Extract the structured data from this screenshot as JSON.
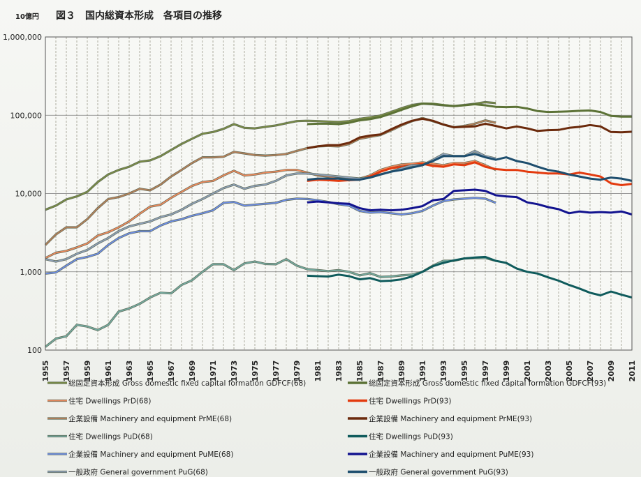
{
  "chart_data": {
    "type": "line",
    "title": "図３　国内総資本形成　各項目の推移",
    "unit_label": "10億円",
    "y_scale": "log",
    "ylim": [
      100,
      1000000
    ],
    "y_ticks": [
      "100",
      "1,000",
      "10,000",
      "100,000",
      "1,000,000"
    ],
    "y_tick_values": [
      100,
      1000,
      10000,
      100000,
      1000000
    ],
    "xlim": [
      1955,
      2011
    ],
    "x_tick_labels": [
      "1955",
      "1957",
      "1959",
      "1961",
      "1963",
      "1965",
      "1967",
      "1969",
      "1971",
      "1973",
      "1975",
      "1977",
      "1979",
      "1981",
      "1983",
      "1985",
      "1987",
      "1989",
      "1991",
      "1993",
      "1995",
      "1997",
      "1999",
      "2001",
      "2003",
      "2005",
      "2007",
      "2009",
      "2011"
    ],
    "grid": "vertical dashed every year",
    "legend_placement": "bottom",
    "series": [
      {
        "name": "総固定資本形成 Gross domestic fixed capital formation GDFCF(68)",
        "color": "#7a8c46",
        "x": [
          1955,
          1956,
          1957,
          1958,
          1959,
          1960,
          1961,
          1962,
          1963,
          1964,
          1965,
          1966,
          1967,
          1968,
          1969,
          1970,
          1971,
          1972,
          1973,
          1974,
          1975,
          1976,
          1977,
          1978,
          1979,
          1980,
          1981,
          1982,
          1983,
          1984,
          1985,
          1986,
          1987,
          1988,
          1989,
          1990,
          1991,
          1992,
          1993,
          1994,
          1995,
          1996,
          1997,
          1998
        ],
        "values": [
          6200,
          7000,
          8400,
          9200,
          10500,
          14000,
          17500,
          20000,
          22000,
          25500,
          26500,
          30000,
          36000,
          43000,
          50000,
          58000,
          61000,
          67000,
          77000,
          69000,
          68000,
          71000,
          74000,
          79000,
          84000,
          85000,
          84000,
          83000,
          82000,
          84000,
          90000,
          94000,
          99000,
          110000,
          123000,
          135000,
          141000,
          138000,
          134000,
          131000,
          135000,
          140000,
          147000,
          143000
        ]
      },
      {
        "name": "総固定資本形成 Gross domestic fixed capital formation GDFCF(93)",
        "color": "#5c7236",
        "x": [
          1980,
          1981,
          1982,
          1983,
          1984,
          1985,
          1986,
          1987,
          1988,
          1989,
          1990,
          1991,
          1992,
          1993,
          1994,
          1995,
          1996,
          1997,
          1998,
          1999,
          2000,
          2001,
          2002,
          2003,
          2004,
          2005,
          2006,
          2007,
          2008,
          2009,
          2010,
          2011
        ],
        "values": [
          77000,
          78000,
          78000,
          77000,
          80000,
          86000,
          89000,
          95000,
          105000,
          117000,
          130000,
          141000,
          140000,
          135000,
          131000,
          134000,
          138000,
          134000,
          128000,
          127000,
          128000,
          122000,
          113000,
          110000,
          111000,
          112000,
          114000,
          115000,
          110000,
          98000,
          96000,
          96000
        ]
      },
      {
        "name": "住宅 Dwellings PrD(68)",
        "color": "#ef8a5c",
        "x": [
          1955,
          1956,
          1957,
          1958,
          1959,
          1960,
          1961,
          1962,
          1963,
          1964,
          1965,
          1966,
          1967,
          1968,
          1969,
          1970,
          1971,
          1972,
          1973,
          1974,
          1975,
          1976,
          1977,
          1978,
          1979,
          1980,
          1981,
          1982,
          1983,
          1984,
          1985,
          1986,
          1987,
          1988,
          1989,
          1990,
          1991,
          1992,
          1993,
          1994,
          1995,
          1996,
          1997,
          1998
        ],
        "values": [
          1500,
          1750,
          1850,
          2050,
          2300,
          2900,
          3200,
          3700,
          4400,
          5500,
          6800,
          7200,
          8800,
          10500,
          12500,
          14000,
          14500,
          17000,
          19500,
          17000,
          17500,
          18500,
          19000,
          20000,
          20000,
          18500,
          17000,
          16500,
          15500,
          15000,
          15500,
          17000,
          20000,
          22000,
          23500,
          24000,
          25000,
          24000,
          23000,
          24500,
          24500,
          26000,
          23000,
          20000
        ]
      },
      {
        "name": "住宅 Dwellings PrD(93)",
        "color": "#e33a0e",
        "x": [
          1980,
          1981,
          1982,
          1983,
          1984,
          1985,
          1986,
          1987,
          1988,
          1989,
          1990,
          1991,
          1992,
          1993,
          1994,
          1995,
          1996,
          1997,
          1998,
          1999,
          2000,
          2001,
          2002,
          2003,
          2004,
          2005,
          2006,
          2007,
          2008,
          2009,
          2010,
          2011
        ],
        "values": [
          14500,
          15000,
          14800,
          14500,
          14800,
          15000,
          16500,
          19000,
          21000,
          22000,
          23000,
          24000,
          22500,
          22000,
          23500,
          23000,
          25000,
          22000,
          20500,
          20000,
          20000,
          19000,
          18500,
          18000,
          18000,
          17500,
          18500,
          17500,
          16500,
          13500,
          12800,
          13300
        ]
      },
      {
        "name": "企業設備 Machinery and equipment PrME(68)",
        "color": "#b6815a",
        "x": [
          1955,
          1956,
          1957,
          1958,
          1959,
          1960,
          1961,
          1962,
          1963,
          1964,
          1965,
          1966,
          1967,
          1968,
          1969,
          1970,
          1971,
          1972,
          1973,
          1974,
          1975,
          1976,
          1977,
          1978,
          1979,
          1980,
          1981,
          1982,
          1983,
          1984,
          1985,
          1986,
          1987,
          1988,
          1989,
          1990,
          1991,
          1992,
          1993,
          1994,
          1995,
          1996,
          1997,
          1998
        ],
        "values": [
          2200,
          3000,
          3700,
          3700,
          4700,
          6500,
          8500,
          9000,
          10000,
          11500,
          11000,
          13000,
          16500,
          20000,
          24500,
          29000,
          29000,
          29500,
          34000,
          32500,
          31000,
          30500,
          31000,
          32000,
          35000,
          38000,
          40000,
          40500,
          40000,
          43000,
          50000,
          53000,
          56000,
          64000,
          74000,
          84000,
          92000,
          84000,
          76000,
          70000,
          73000,
          78000,
          86000,
          80000
        ]
      },
      {
        "name": "企業設備 Machinery and equipment PrME(93)",
        "color": "#6b2a0c",
        "x": [
          1980,
          1981,
          1982,
          1983,
          1984,
          1985,
          1986,
          1987,
          1988,
          1989,
          1990,
          1991,
          1992,
          1993,
          1994,
          1995,
          1996,
          1997,
          1998,
          1999,
          2000,
          2001,
          2002,
          2003,
          2004,
          2005,
          2006,
          2007,
          2008,
          2009,
          2010,
          2011
        ],
        "values": [
          38000,
          40000,
          41500,
          41500,
          44500,
          52000,
          55000,
          57000,
          66000,
          76000,
          85000,
          90000,
          85000,
          76000,
          70000,
          71000,
          72000,
          78000,
          73000,
          68000,
          72000,
          68000,
          63000,
          64500,
          65000,
          69000,
          71000,
          75000,
          72000,
          61000,
          60500,
          61500
        ]
      },
      {
        "name": "住宅 Dwellings PuD(68)",
        "color": "#74aaa0",
        "x": [
          1955,
          1956,
          1957,
          1958,
          1959,
          1960,
          1961,
          1962,
          1963,
          1964,
          1965,
          1966,
          1967,
          1968,
          1969,
          1970,
          1971,
          1972,
          1973,
          1974,
          1975,
          1976,
          1977,
          1978,
          1979,
          1980,
          1981,
          1982,
          1983,
          1984,
          1985,
          1986,
          1987,
          1988,
          1989,
          1990,
          1991,
          1992,
          1993,
          1994,
          1995,
          1996,
          1997,
          1998
        ],
        "values": [
          110,
          140,
          150,
          210,
          200,
          180,
          210,
          310,
          340,
          390,
          470,
          540,
          530,
          680,
          780,
          1000,
          1250,
          1250,
          1050,
          1280,
          1350,
          1260,
          1250,
          1450,
          1200,
          1080,
          1050,
          1020,
          1050,
          1000,
          900,
          960,
          860,
          870,
          900,
          920,
          1000,
          1200,
          1380,
          1380,
          1480,
          1500,
          1500,
          1380
        ]
      },
      {
        "name": "住宅 Dwellings PuD(93)",
        "color": "#0f5b5c",
        "x": [
          1980,
          1981,
          1982,
          1983,
          1984,
          1985,
          1986,
          1987,
          1988,
          1989,
          1990,
          1991,
          1992,
          1993,
          1994,
          1995,
          1996,
          1997,
          1998,
          1999,
          2000,
          2001,
          2002,
          2003,
          2004,
          2005,
          2006,
          2007,
          2008,
          2009,
          2010,
          2011
        ],
        "values": [
          890,
          880,
          870,
          920,
          880,
          800,
          830,
          760,
          770,
          800,
          870,
          1000,
          1180,
          1300,
          1400,
          1480,
          1520,
          1550,
          1380,
          1300,
          1100,
          1000,
          950,
          850,
          770,
          680,
          610,
          540,
          500,
          560,
          510,
          470
        ]
      },
      {
        "name": "企業設備 Machinery and equipment PuME(68)",
        "color": "#6e8ee8",
        "x": [
          1955,
          1956,
          1957,
          1958,
          1959,
          1960,
          1961,
          1962,
          1963,
          1964,
          1965,
          1966,
          1967,
          1968,
          1969,
          1970,
          1971,
          1972,
          1973,
          1974,
          1975,
          1976,
          1977,
          1978,
          1979,
          1980,
          1981,
          1982,
          1983,
          1984,
          1985,
          1986,
          1987,
          1988,
          1989,
          1990,
          1991,
          1992,
          1993,
          1994,
          1995,
          1996,
          1997,
          1998
        ],
        "values": [
          950,
          980,
          1200,
          1450,
          1550,
          1700,
          2200,
          2700,
          3100,
          3300,
          3300,
          3900,
          4400,
          4700,
          5200,
          5600,
          6100,
          7600,
          7800,
          7000,
          7200,
          7400,
          7600,
          8300,
          8600,
          8500,
          8200,
          7800,
          7300,
          7000,
          6000,
          5700,
          5800,
          5600,
          5400,
          5600,
          6000,
          7000,
          8000,
          8400,
          8600,
          8800,
          8600,
          7600
        ]
      },
      {
        "name": "企業設備 Machinery and equipment PuME(93)",
        "color": "#12138f",
        "x": [
          1980,
          1981,
          1982,
          1983,
          1984,
          1985,
          1986,
          1987,
          1988,
          1989,
          1990,
          1991,
          1992,
          1993,
          1994,
          1995,
          1996,
          1997,
          1998,
          1999,
          2000,
          2001,
          2002,
          2003,
          2004,
          2005,
          2006,
          2007,
          2008,
          2009,
          2010,
          2011
        ],
        "values": [
          7700,
          7900,
          7700,
          7500,
          7400,
          6500,
          6100,
          6200,
          6100,
          6200,
          6500,
          6900,
          8200,
          8500,
          10800,
          11000,
          11200,
          10800,
          9500,
          9200,
          9000,
          7700,
          7300,
          6700,
          6300,
          5600,
          5900,
          5700,
          5800,
          5700,
          5900,
          5400
        ]
      },
      {
        "name": "一般政府 General government PuG(68)",
        "color": "#8ea0b8",
        "x": [
          1955,
          1956,
          1957,
          1958,
          1959,
          1960,
          1961,
          1962,
          1963,
          1964,
          1965,
          1966,
          1967,
          1968,
          1969,
          1970,
          1971,
          1972,
          1973,
          1974,
          1975,
          1976,
          1977,
          1978,
          1979,
          1980,
          1981,
          1982,
          1983,
          1984,
          1985,
          1986,
          1987,
          1988,
          1989,
          1990,
          1991,
          1992,
          1993,
          1994,
          1995,
          1996,
          1997,
          1998
        ],
        "values": [
          1450,
          1350,
          1450,
          1700,
          1900,
          2300,
          2700,
          3300,
          3800,
          4100,
          4400,
          5000,
          5400,
          6200,
          7400,
          8500,
          10000,
          11700,
          13000,
          11500,
          12500,
          13000,
          14500,
          17000,
          18000,
          18000,
          17500,
          17000,
          16500,
          16000,
          15500,
          16000,
          17500,
          19000,
          21000,
          23000,
          23000,
          27000,
          32000,
          30000,
          30000,
          35000,
          30000,
          28000
        ]
      },
      {
        "name": "一般政府 General government PuG(93)",
        "color": "#1e4e6e",
        "x": [
          1980,
          1981,
          1982,
          1983,
          1984,
          1985,
          1986,
          1987,
          1988,
          1989,
          1990,
          1991,
          1992,
          1993,
          1994,
          1995,
          1996,
          1997,
          1998,
          1999,
          2000,
          2001,
          2002,
          2003,
          2004,
          2005,
          2006,
          2007,
          2008,
          2009,
          2010,
          2011
        ],
        "values": [
          15000,
          15500,
          15500,
          15500,
          15000,
          15000,
          16000,
          17500,
          19000,
          20000,
          21500,
          23000,
          26000,
          30000,
          30000,
          30000,
          32000,
          29000,
          27000,
          29000,
          26000,
          24500,
          22000,
          20000,
          19000,
          17500,
          16500,
          15500,
          15000,
          16000,
          15500,
          14500
        ]
      }
    ]
  }
}
